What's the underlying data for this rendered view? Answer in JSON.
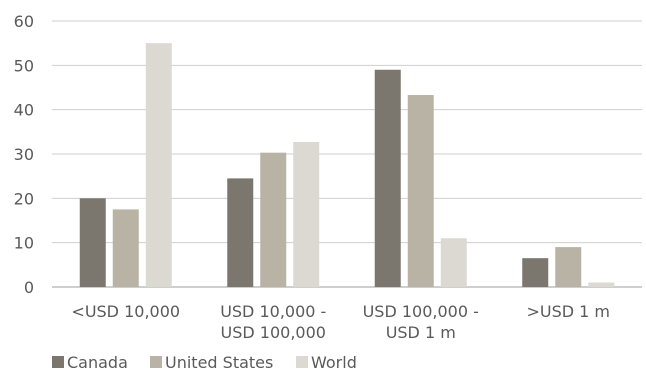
{
  "chart_data": {
    "type": "bar",
    "title": "",
    "xlabel": "",
    "ylabel": "",
    "categories": [
      [
        "<USD 10,000"
      ],
      [
        "USD 10,000 -",
        "USD 100,000"
      ],
      [
        "USD 100,000 -",
        "USD 1 m"
      ],
      [
        ">USD 1 m"
      ]
    ],
    "series": [
      {
        "name": "Canada",
        "color": "#7b766e",
        "values": [
          20,
          24.5,
          49,
          6.5
        ]
      },
      {
        "name": "United States",
        "color": "#b8b3a4",
        "values": [
          17.5,
          30.3,
          43.3,
          9
        ]
      },
      {
        "name": "World",
        "color": "#dcd9d2",
        "values": [
          55,
          32.7,
          11,
          1
        ]
      }
    ],
    "ylim": [
      0,
      60
    ],
    "yticks": [
      0,
      10,
      20,
      30,
      40,
      50,
      60
    ],
    "grid": true,
    "legend_position": "bottom-left"
  }
}
